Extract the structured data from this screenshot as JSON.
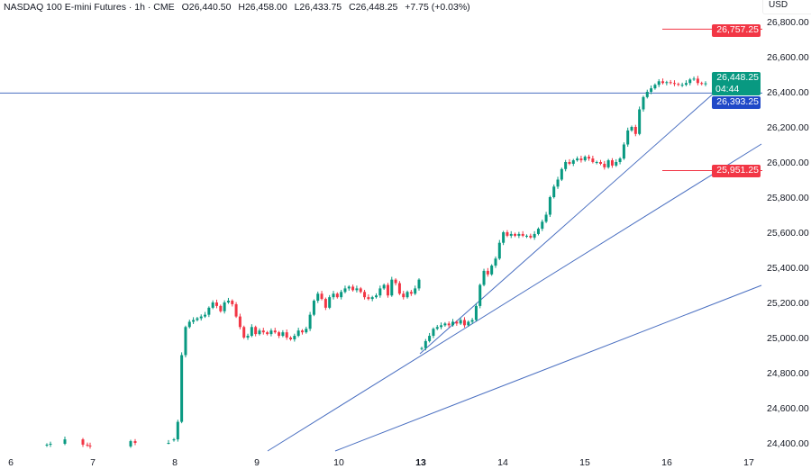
{
  "header": {
    "symbol": "NASDAQ 100 E-mini Futures · 1h · CME",
    "open": "O26,440.50",
    "high": "H26,458.00",
    "low": "L26,433.75",
    "close": "C26,448.25",
    "change": "+7.75 (+0.03%)"
  },
  "currency": "USD",
  "price_labels": {
    "red_top": "26,757.25",
    "last": "26,448.25",
    "countdown": "04:44",
    "blue": "26,393.25",
    "red_bottom": "25,951.25"
  },
  "colors": {
    "up": "#089981",
    "down": "#f23645",
    "line": "#4a6fc1",
    "red_level": "#f23645",
    "blue_label": "#2049c8"
  },
  "chart_data": {
    "type": "candlestick",
    "title": "NASDAQ 100 E-mini Futures · 1h · CME",
    "ylim": [
      24400,
      26800
    ],
    "y_ticks": [
      "26,800.00",
      "26,600.00",
      "26,400.00",
      "26,200.00",
      "26,000.00",
      "25,800.00",
      "25,600.00",
      "25,400.00",
      "25,200.00",
      "25,000.00",
      "24,800.00",
      "24,600.00",
      "24,400.00"
    ],
    "x_ticks": [
      "6",
      "7",
      "8",
      "9",
      "10",
      "13",
      "14",
      "15",
      "16",
      "17"
    ],
    "levels": {
      "red_top": 26757.25,
      "blue": 26393.25,
      "red_bottom": 25951.25
    },
    "sparse_closes": [
      24390,
      24395,
      24420,
      24390,
      24385,
      24380,
      24410,
      24400,
      24400
    ],
    "session_1_closes": [
      24420,
      24520,
      24900,
      25060,
      25090,
      25100,
      25110,
      25120,
      25130,
      25170,
      25200,
      25180,
      25150,
      25200,
      25210,
      25190,
      25120,
      25060,
      25000,
      25010,
      25060,
      25020,
      25040,
      25030,
      25020,
      25040,
      25030,
      25010,
      25030,
      25000,
      24990,
      25010,
      25040,
      25030,
      25050,
      25130,
      25210,
      25250,
      25220,
      25170,
      25230,
      25250,
      25230,
      25260,
      25280,
      25290,
      25270,
      25280,
      25260,
      25230,
      25220,
      25230,
      25240,
      25280,
      25300,
      25240,
      25330,
      25310,
      25250,
      25230,
      25260,
      25250,
      25280,
      25330
    ],
    "session_2_closes": [
      24940,
      24980,
      25010,
      25050,
      25060,
      25070,
      25080,
      25070,
      25090,
      25080,
      25100,
      25070,
      25090,
      25100,
      25180,
      25300,
      25380,
      25360,
      25410,
      25450,
      25540,
      25600,
      25580,
      25590,
      25580,
      25590,
      25580,
      25580,
      25570,
      25590,
      25620,
      25660,
      25700,
      25800,
      25860,
      25900,
      25960,
      26000,
      25990,
      26010,
      26020,
      26010,
      26030,
      26020,
      26000,
      26000,
      25990,
      25970,
      26010,
      25980,
      26000,
      26020,
      26100,
      26180,
      26200,
      26160,
      26300,
      26370,
      26400,
      26420,
      26440,
      26460,
      26450,
      26455,
      26450,
      26445,
      26440,
      26440,
      26450,
      26470,
      26475,
      26450,
      26445,
      26448.25
    ]
  }
}
